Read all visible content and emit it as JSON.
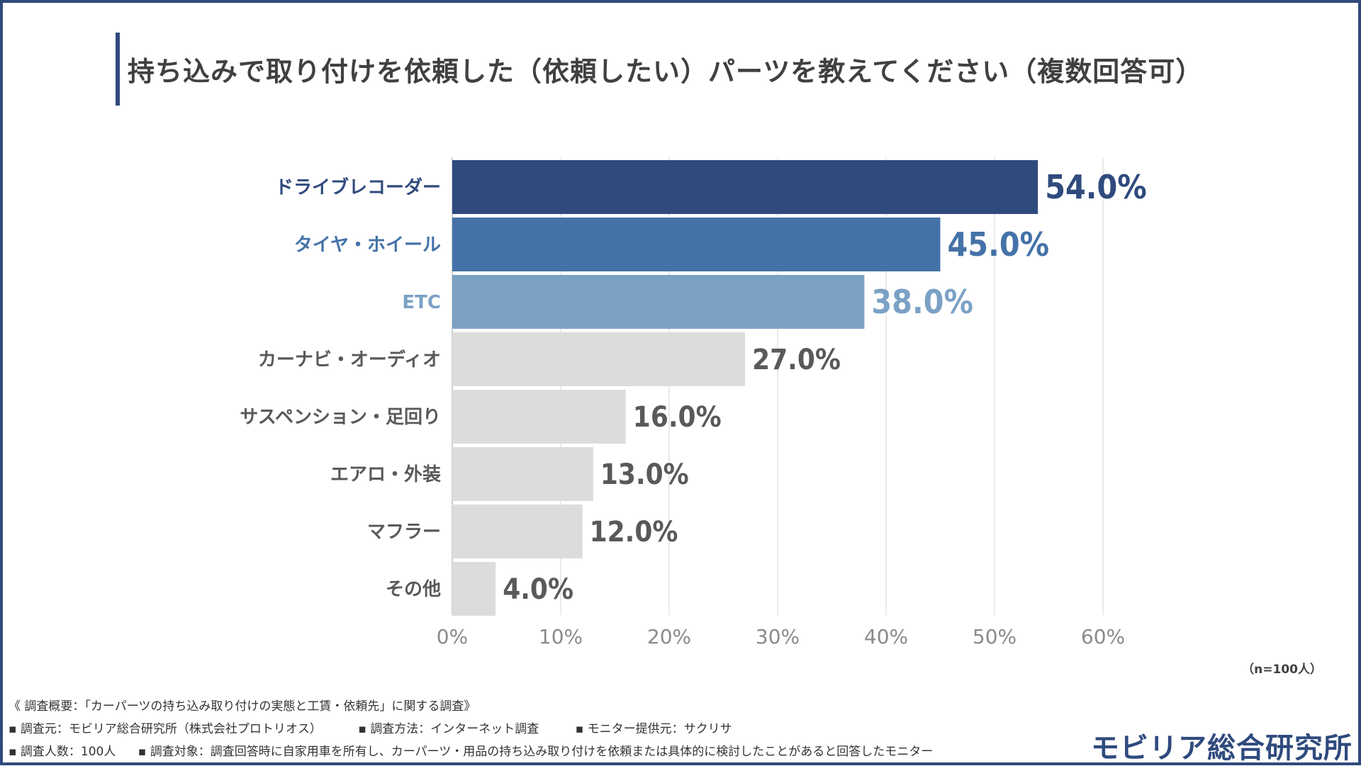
{
  "title": "持ち込みで取り付けを依頼した（依頼したい）パーツを教えてください（複数回答可）",
  "sample_note": "（n=100人）",
  "chart_data": {
    "type": "bar",
    "orientation": "horizontal",
    "title": "持ち込みで取り付けを依頼した（依頼したい）パーツを教えてください（複数回答可）",
    "xlabel": "",
    "ylabel": "",
    "categories": [
      "ドライブレコーダー",
      "タイヤ・ホイール",
      "ETC",
      "カーナビ・オーディオ",
      "サスペンション・足回り",
      "エアロ・外装",
      "マフラー",
      "その他"
    ],
    "values": [
      54.0,
      45.0,
      38.0,
      27.0,
      16.0,
      13.0,
      12.0,
      4.0
    ],
    "value_labels": [
      "54.0%",
      "45.0%",
      "38.0%",
      "27.0%",
      "16.0%",
      "13.0%",
      "12.0%",
      "4.0%"
    ],
    "bar_colors": [
      "#2f4a7d",
      "#4472a8",
      "#7ba1c5",
      "#dcdcdc",
      "#dcdcdc",
      "#dcdcdc",
      "#dcdcdc",
      "#dcdcdc"
    ],
    "label_colors": [
      "#2f4a7d",
      "#4472a8",
      "#7ba1c5",
      "#595959",
      "#595959",
      "#595959",
      "#595959",
      "#595959"
    ],
    "xlim": [
      0,
      60
    ],
    "xticks": [
      0,
      10,
      20,
      30,
      40,
      50,
      60
    ],
    "xtick_labels": [
      "0%",
      "10%",
      "20%",
      "30%",
      "40%",
      "50%",
      "60%"
    ],
    "grid": true
  },
  "footer": {
    "survey_name": "《 調査概要：「カーパーツの持ち込み取り付けの実態と工賃・依頼先」に関する調査》",
    "source": "▪ 調査元：モビリア総合研究所（株式会社プロトリオス）",
    "method": "▪ 調査方法：インターネット調査",
    "monitor": "▪ モニター提供元：サクリサ",
    "count": "▪ 調査人数：100人",
    "target": "▪ 調査対象：調査回答時に自家用車を所有し、カーパーツ・用品の持ち込み取り付けを依頼または具体的に検討したことがあると回答したモニター"
  },
  "brand": "モビリア総合研究所"
}
